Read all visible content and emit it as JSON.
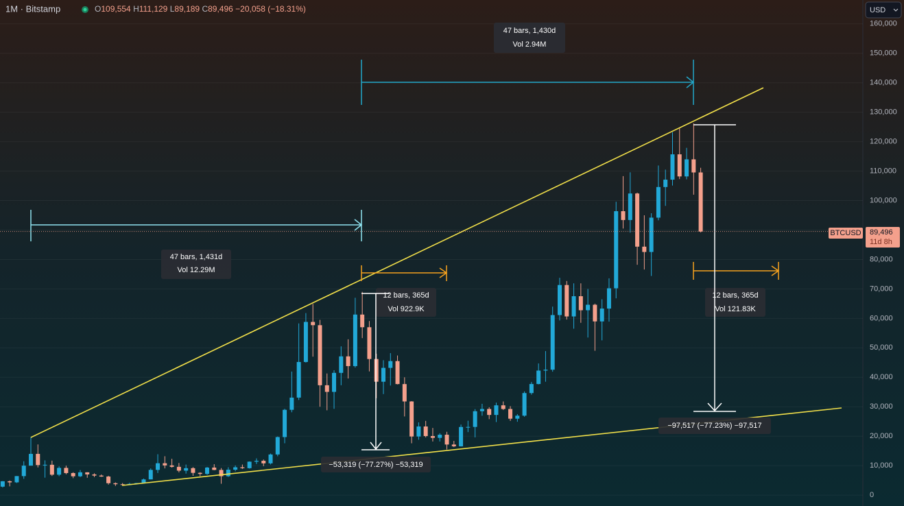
{
  "chart_data": {
    "type": "candlestick",
    "symbol": "1M · Bitstamp",
    "header": [
      {
        "key": "O",
        "value": "109,554"
      },
      {
        "key": "H",
        "value": "111,129"
      },
      {
        "key": "L",
        "value": "89,189"
      },
      {
        "key": "C",
        "value": "89,496"
      }
    ],
    "change": "−20,058 (−18.31%)",
    "currency": "USD",
    "price_label": {
      "ticker": "BTCUSD",
      "price": "89,496",
      "countdown": "11d 8h"
    },
    "colors": {
      "up": "#22a9d8",
      "down": "#f4a08c"
    },
    "ylim": [
      -3700,
      168100
    ],
    "yticks": [
      0,
      {
        "value": 10000,
        "label": "10,000"
      },
      {
        "value": 20000,
        "label": "20,000"
      },
      {
        "value": 30000,
        "label": "30,000"
      },
      {
        "value": 40000,
        "label": "40,000"
      },
      {
        "value": 50000,
        "label": "50,000"
      },
      {
        "value": 60000,
        "label": "60,000"
      },
      {
        "value": 70000,
        "label": "70,000"
      },
      {
        "value": 80000,
        "label": "80,000"
      },
      {
        "value": 90000,
        "label": "90,000"
      },
      {
        "value": 100000,
        "label": "100,000"
      },
      {
        "value": 110000,
        "label": "110,000"
      },
      {
        "value": 120000,
        "label": "120,000"
      },
      {
        "value": 130000,
        "label": "130,000"
      },
      {
        "value": 140000,
        "label": "140,000"
      },
      {
        "value": 150000,
        "label": "150,000"
      },
      {
        "value": 160000,
        "label": "160,000"
      }
    ],
    "annotations": {
      "top_range": [
        "47 bars, 1,430d",
        "Vol 2.94M"
      ],
      "left_range": [
        "47 bars, 1,431d",
        "Vol 12.29M"
      ],
      "orange_left": [
        "12 bars, 365d",
        "Vol 922.9K"
      ],
      "orange_right": [
        "12 bars, 365d",
        "Vol 121.83K"
      ],
      "drop_left": "−53,319 (−77.27%) −53,319",
      "drop_right": "−97,517 (−77.23%) −97,517"
    },
    "open": [
      2870,
      4700,
      4340,
      6450,
      10000,
      14000,
      10200,
      10300,
      6930,
      9240,
      7480,
      6390,
      7730,
      7030,
      6630,
      6300,
      4040,
      3700,
      3440,
      3810,
      4100,
      5330,
      8560,
      10820,
      10080,
      9600,
      8300,
      9150,
      7550,
      7200,
      9350,
      8540,
      6410,
      8630,
      9450,
      9140,
      11350,
      11650,
      10780,
      13800,
      19700,
      28950,
      33100,
      45200,
      58800,
      57700,
      37300,
      35050,
      41500,
      47100,
      43800,
      61300,
      57000,
      46200,
      38500,
      43200,
      45500,
      37700,
      31800,
      19900,
      23300,
      20050,
      19430,
      20500,
      17170,
      16550,
      23130,
      23150,
      28480,
      29250,
      27220,
      30480,
      29240,
      25940,
      26970,
      34650,
      37720,
      42280,
      42580,
      61130,
      71330,
      60660,
      67530,
      62770,
      64630,
      58970,
      63330,
      70220,
      96400,
      93400,
      102400,
      84350,
      82550,
      94200,
      104600,
      107100,
      115700,
      108200,
      114000,
      109554
    ],
    "high": [
      4750,
      4970,
      6470,
      11500,
      19666,
      17200,
      11800,
      11700,
      9750,
      10000,
      7760,
      8500,
      7760,
      7400,
      7000,
      6560,
      4300,
      4100,
      4200,
      4130,
      5630,
      9070,
      13880,
      13200,
      12330,
      10900,
      10370,
      9510,
      7750,
      9580,
      10500,
      9190,
      9460,
      10070,
      10380,
      11440,
      12470,
      12070,
      14100,
      19900,
      29300,
      41950,
      58300,
      61800,
      64900,
      59500,
      41300,
      42400,
      50500,
      52900,
      67000,
      69000,
      59100,
      48000,
      45800,
      48200,
      47400,
      40000,
      31900,
      24700,
      25200,
      22800,
      21000,
      21500,
      18400,
      23950,
      25250,
      29200,
      31000,
      29820,
      31400,
      31800,
      30200,
      27500,
      35200,
      38400,
      44700,
      48900,
      64000,
      73800,
      72700,
      71900,
      71900,
      70000,
      65000,
      66500,
      73600,
      99600,
      108300,
      109600,
      102700,
      95000,
      95700,
      111900,
      110500,
      123200,
      124500,
      117900,
      126200,
      111129
    ],
    "low": [
      2580,
      2970,
      4110,
      5520,
      10800,
      9400,
      5920,
      6500,
      6430,
      7060,
      5750,
      6100,
      5880,
      6130,
      6200,
      3560,
      3120,
      3360,
      3390,
      3700,
      4080,
      5330,
      7500,
      9070,
      9340,
      7710,
      7300,
      6540,
      6430,
      6850,
      8440,
      3850,
      6150,
      8100,
      8900,
      8990,
      10540,
      9830,
      10400,
      13200,
      17600,
      28130,
      32300,
      45000,
      47000,
      30000,
      28800,
      29300,
      37300,
      39600,
      43300,
      53300,
      42000,
      32900,
      34300,
      37200,
      37600,
      26700,
      17600,
      18800,
      19600,
      18200,
      18200,
      15480,
      16300,
      16500,
      21400,
      19600,
      26950,
      25800,
      24800,
      28900,
      25200,
      24900,
      26600,
      34100,
      37600,
      38500,
      41900,
      59300,
      59600,
      56500,
      58500,
      53500,
      49000,
      52550,
      58900,
      66800,
      90500,
      89100,
      78200,
      76600,
      74400,
      93300,
      98200,
      105100,
      107300,
      107200,
      102000,
      89189
    ],
    "close": [
      4700,
      4340,
      6450,
      10000,
      14000,
      10200,
      10300,
      6930,
      9240,
      7480,
      6390,
      7730,
      7030,
      6630,
      6300,
      4040,
      3700,
      3440,
      3810,
      4100,
      5330,
      8560,
      10820,
      10080,
      9600,
      8300,
      9150,
      7550,
      7200,
      9350,
      8540,
      6410,
      8630,
      9450,
      9140,
      11350,
      11650,
      10780,
      13800,
      19700,
      28950,
      33100,
      45200,
      58800,
      57700,
      37300,
      35050,
      41500,
      47100,
      43800,
      61300,
      57000,
      46200,
      38500,
      43200,
      45500,
      37700,
      31800,
      19900,
      23300,
      20050,
      19430,
      20500,
      17170,
      16550,
      23130,
      23150,
      28480,
      29250,
      27220,
      30480,
      29240,
      25940,
      26970,
      34650,
      37720,
      42280,
      42580,
      61130,
      71330,
      60660,
      67530,
      62770,
      64630,
      58970,
      63330,
      70220,
      96400,
      93400,
      102400,
      84350,
      82550,
      94200,
      104600,
      107100,
      115700,
      108200,
      114000,
      109554,
      89496
    ]
  }
}
